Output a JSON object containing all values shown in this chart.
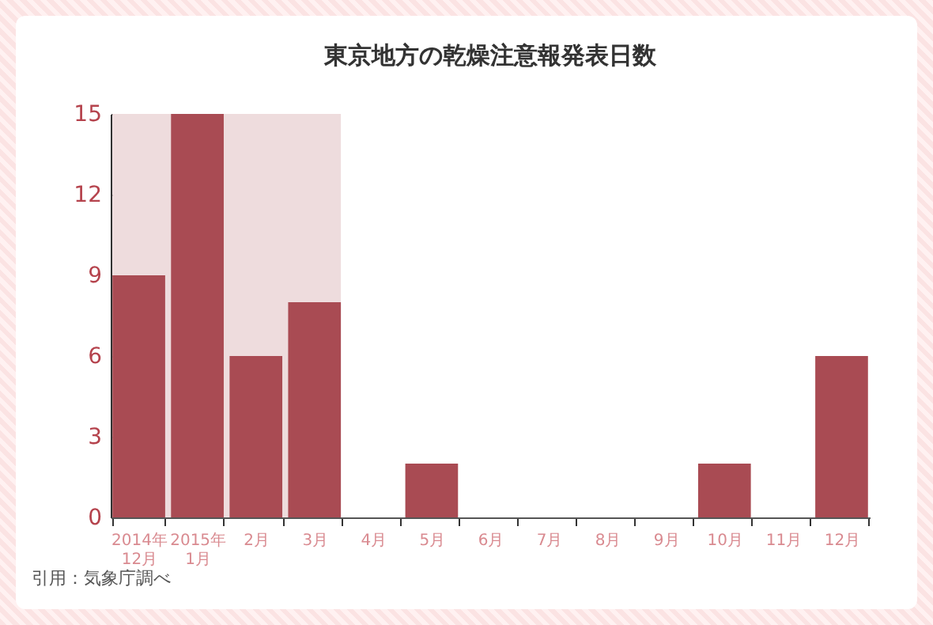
{
  "chart_data": {
    "type": "bar",
    "title": "東京地方の乾燥注意報発表日数",
    "categories": [
      "2014年\n12月",
      "2015年\n1月",
      "2月",
      "3月",
      "4月",
      "5月",
      "6月",
      "7月",
      "8月",
      "9月",
      "10月",
      "11月",
      "12月"
    ],
    "values": [
      9,
      15,
      6,
      8,
      0,
      2,
      0,
      0,
      0,
      0,
      2,
      0,
      6
    ],
    "color": "#a94b53",
    "ylim": [
      0,
      15
    ],
    "yticks": [
      0,
      3,
      6,
      9,
      12,
      15
    ],
    "grid": false,
    "bands": [
      {
        "axis": "x",
        "from": "2014年\n12月",
        "to": "3月",
        "color": "#eedcdd"
      }
    ],
    "annotations": [
      "引用：気象庁調べ"
    ]
  }
}
